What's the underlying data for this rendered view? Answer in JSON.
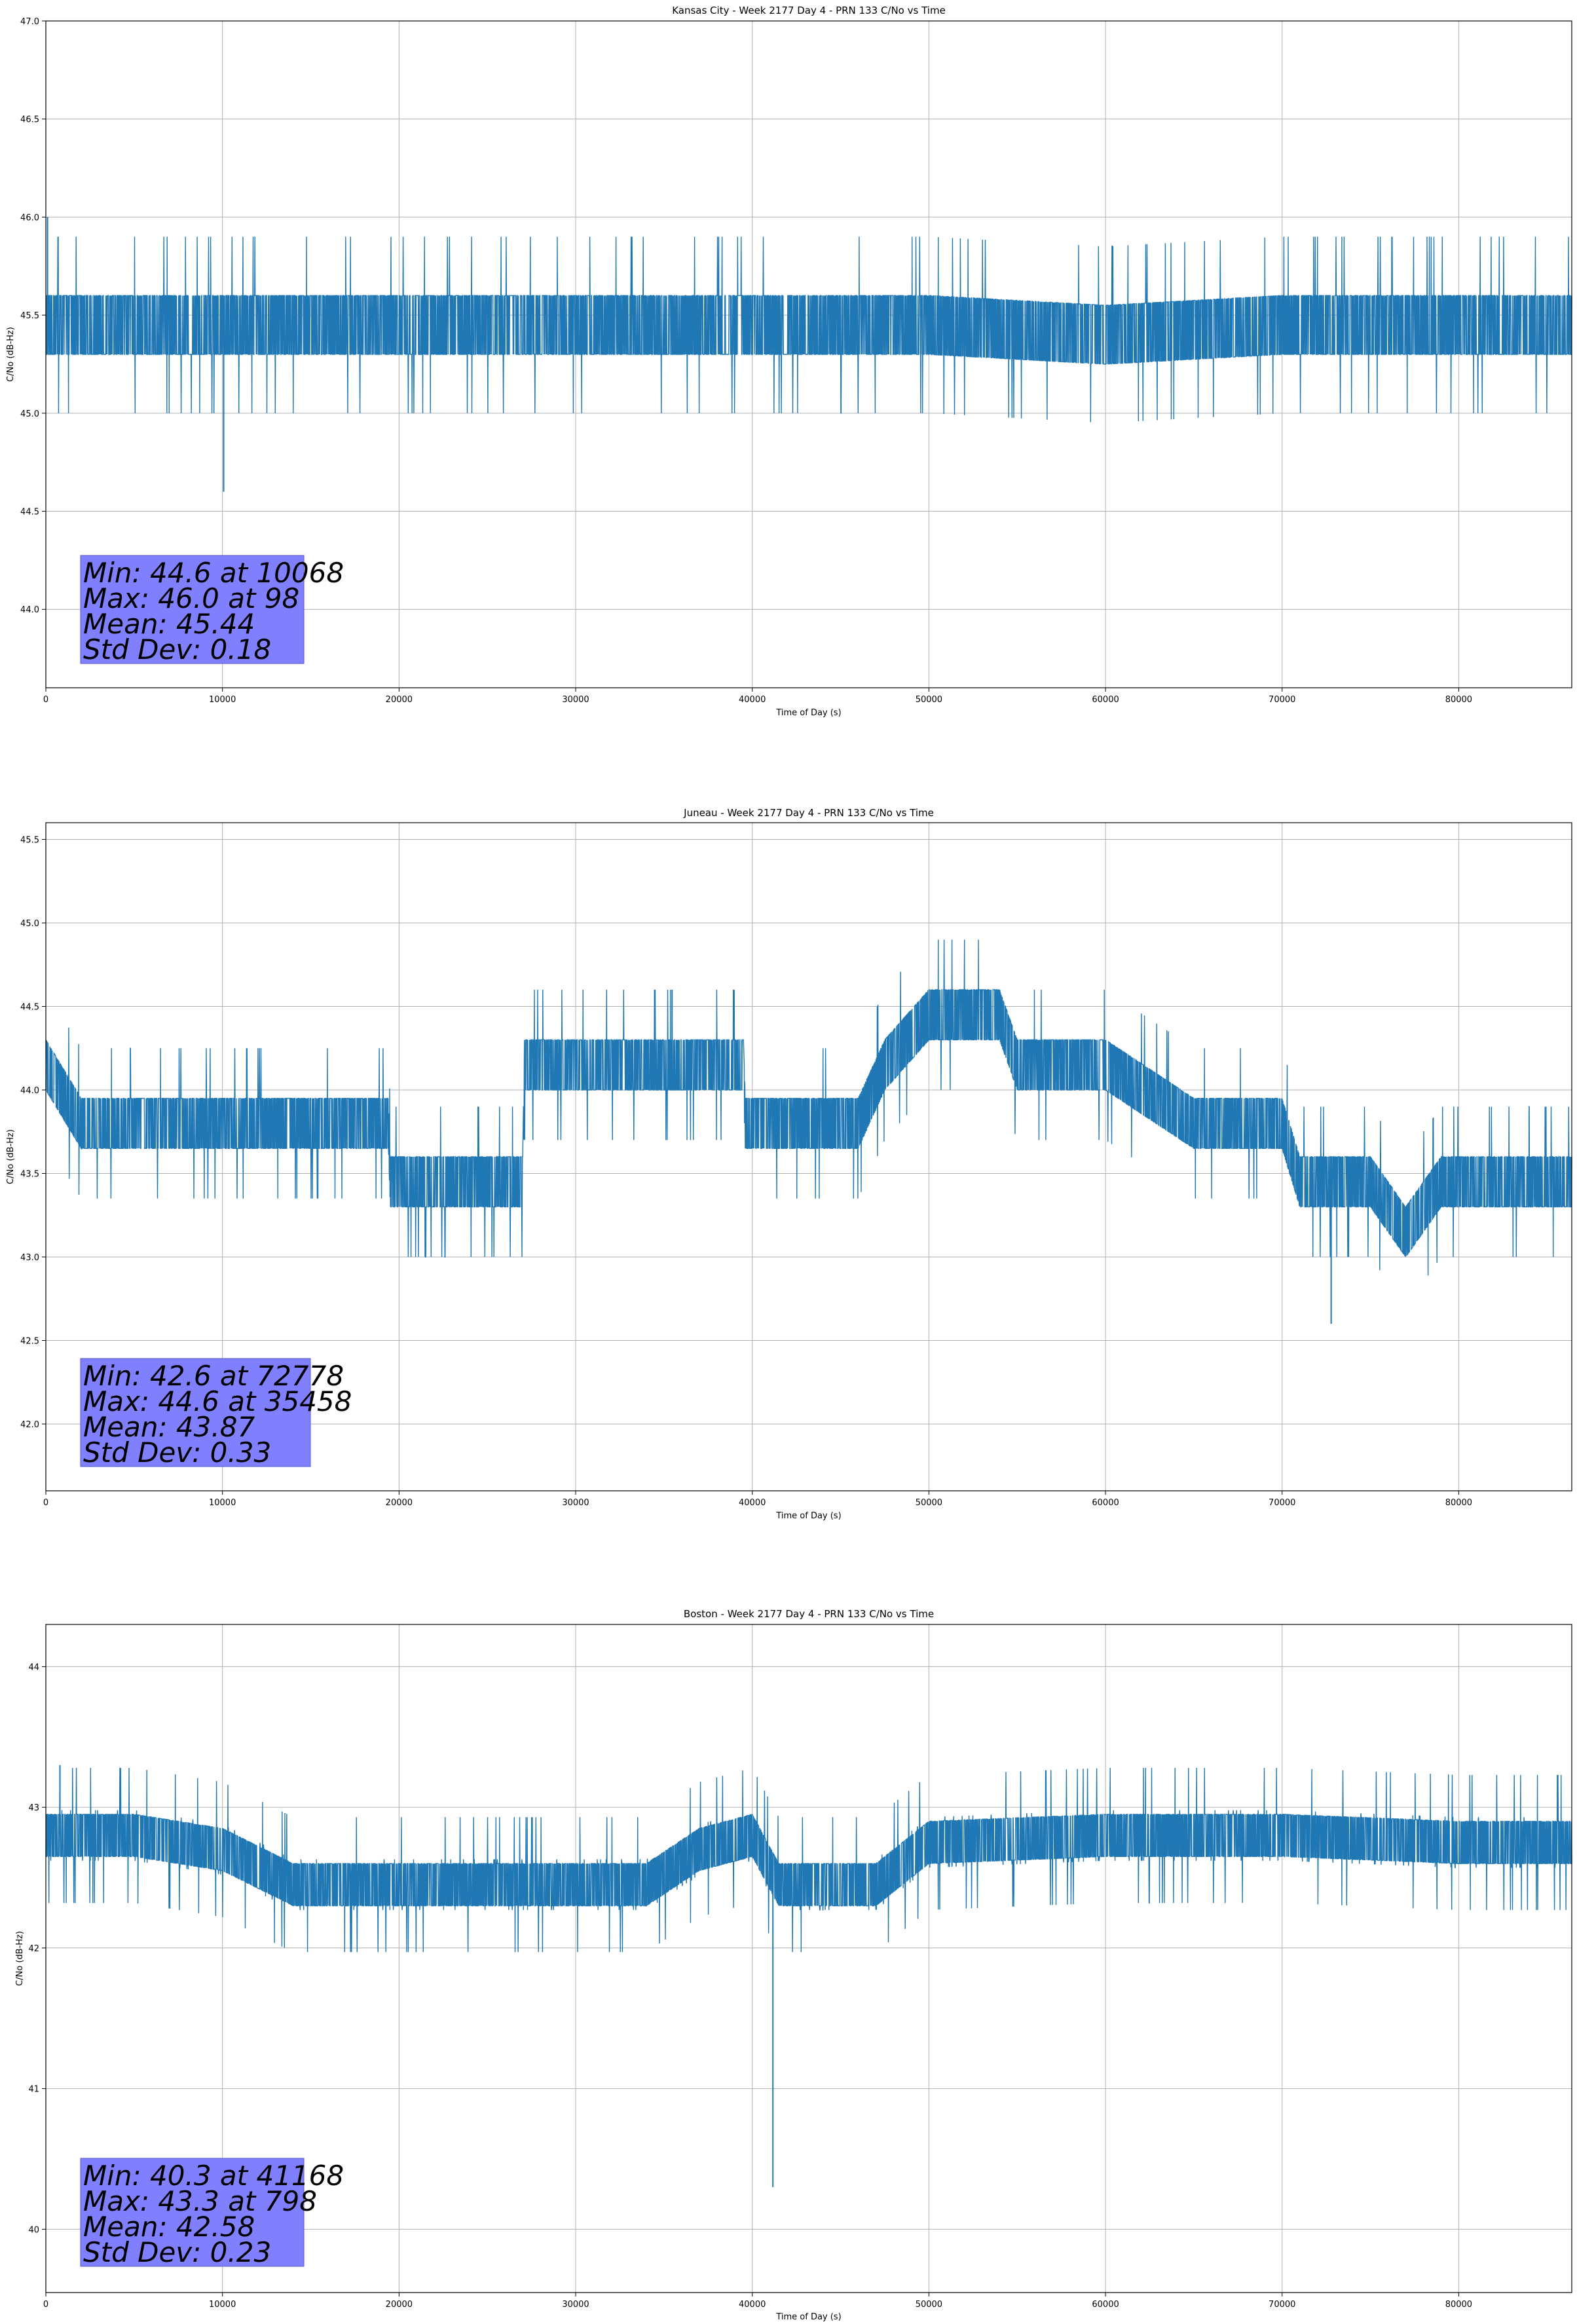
{
  "chart_data": [
    {
      "type": "line",
      "title": "Kansas City - Week 2177 Day 4 - PRN 133 C/No vs Time",
      "xlabel": "Time of Day (s)",
      "ylabel": "C/No (dB-Hz)",
      "xlim": [
        0,
        86400
      ],
      "ylim": [
        43.6,
        47.0
      ],
      "xticks": [
        0,
        10000,
        20000,
        30000,
        40000,
        50000,
        60000,
        70000,
        80000
      ],
      "xtick_labels": [
        "0",
        "10000",
        "20000",
        "30000",
        "40000",
        "50000",
        "60000",
        "70000",
        "80000"
      ],
      "yticks": [
        44.0,
        44.5,
        45.0,
        45.5,
        46.0,
        46.5,
        47.0
      ],
      "ytick_labels": [
        "44.0",
        "44.5",
        "45.0",
        "45.5",
        "46.0",
        "46.5",
        "47.0"
      ],
      "grid": true,
      "color": "#1f77b4",
      "series": [
        {
          "levels": [
            45.3,
            45.6
          ],
          "x": [
            0,
            10000,
            20000,
            30000,
            40000,
            50000,
            60000,
            70000,
            80000,
            86400
          ],
          "y": [
            45.45,
            45.45,
            45.45,
            45.45,
            45.45,
            45.45,
            45.4,
            45.45,
            45.45,
            45.45
          ]
        }
      ],
      "annotations": {
        "min": {
          "x": 10068,
          "y": 44.6
        },
        "max": {
          "x": 98,
          "y": 46.0
        }
      },
      "stats_box": {
        "lines": [
          "Min: 44.6 at 10068",
          "Max: 46.0 at 98",
          "Mean: 45.44",
          "Std Dev: 0.18"
        ],
        "color": "#8080ff"
      }
    },
    {
      "type": "line",
      "title": "Juneau - Week 2177 Day 4 - PRN 133 C/No vs Time",
      "xlabel": "Time of Day (s)",
      "ylabel": "C/No (dB-Hz)",
      "xlim": [
        0,
        86400
      ],
      "ylim": [
        41.6,
        45.6
      ],
      "xticks": [
        0,
        10000,
        20000,
        30000,
        40000,
        50000,
        60000,
        70000,
        80000
      ],
      "xtick_labels": [
        "0",
        "10000",
        "20000",
        "30000",
        "40000",
        "50000",
        "60000",
        "70000",
        "80000"
      ],
      "yticks": [
        42.0,
        42.5,
        43.0,
        43.5,
        44.0,
        44.5,
        45.0,
        45.5
      ],
      "ytick_labels": [
        "42.0",
        "42.5",
        "43.0",
        "43.5",
        "44.0",
        "44.5",
        "45.0",
        "45.5"
      ],
      "grid": true,
      "color": "#1f77b4",
      "series": [
        {
          "x": [
            0,
            2000,
            4000,
            8000,
            12000,
            16000,
            19400,
            19500,
            24000,
            27000,
            27100,
            35000,
            39500,
            39600,
            46000,
            47500,
            50000,
            54000,
            55000,
            60000,
            65000,
            70000,
            71000,
            75000,
            77000,
            79000,
            86400
          ],
          "y": [
            44.15,
            43.8,
            43.8,
            43.8,
            43.8,
            43.8,
            43.8,
            43.45,
            43.45,
            43.45,
            44.15,
            44.15,
            44.15,
            43.8,
            43.8,
            44.15,
            44.45,
            44.45,
            44.15,
            44.15,
            43.8,
            43.8,
            43.45,
            43.45,
            43.15,
            43.45,
            43.45
          ]
        }
      ],
      "annotations": {
        "min": {
          "x": 72778,
          "y": 42.6
        },
        "max": {
          "x": 35458,
          "y": 44.6
        }
      },
      "stats_box": {
        "lines": [
          "Min: 42.6 at 72778",
          "Max: 44.6 at 35458",
          "Mean: 43.87",
          "Std Dev: 0.33"
        ],
        "color": "#8080ff"
      }
    },
    {
      "type": "line",
      "title": "Boston - Week 2177 Day 4 - PRN 133 C/No vs Time",
      "xlabel": "Time of Day (s)",
      "ylabel": "C/No (dB-Hz)",
      "xlim": [
        0,
        86400
      ],
      "ylim": [
        39.55,
        44.3
      ],
      "xticks": [
        0,
        10000,
        20000,
        30000,
        40000,
        50000,
        60000,
        70000,
        80000
      ],
      "xtick_labels": [
        "0",
        "10000",
        "20000",
        "30000",
        "40000",
        "50000",
        "60000",
        "70000",
        "80000"
      ],
      "yticks": [
        40,
        41,
        42,
        43,
        44
      ],
      "ytick_labels": [
        "40",
        "41",
        "42",
        "43",
        "44"
      ],
      "grid": true,
      "color": "#1f77b4",
      "series": [
        {
          "x": [
            0,
            5000,
            10000,
            14000,
            20000,
            25000,
            30000,
            34000,
            37000,
            40000,
            41500,
            47000,
            50000,
            60000,
            70000,
            80000,
            86400
          ],
          "y": [
            42.8,
            42.8,
            42.7,
            42.45,
            42.45,
            42.45,
            42.45,
            42.45,
            42.7,
            42.8,
            42.45,
            42.45,
            42.75,
            42.8,
            42.8,
            42.75,
            42.75
          ]
        }
      ],
      "annotations": {
        "min": {
          "x": 41168,
          "y": 40.3
        },
        "max": {
          "x": 798,
          "y": 43.3
        }
      },
      "stats_box": {
        "lines": [
          "Min: 40.3 at 41168",
          "Max: 43.3 at 798",
          "Mean: 42.58",
          "Std Dev: 0.23"
        ],
        "color": "#8080ff"
      }
    }
  ]
}
